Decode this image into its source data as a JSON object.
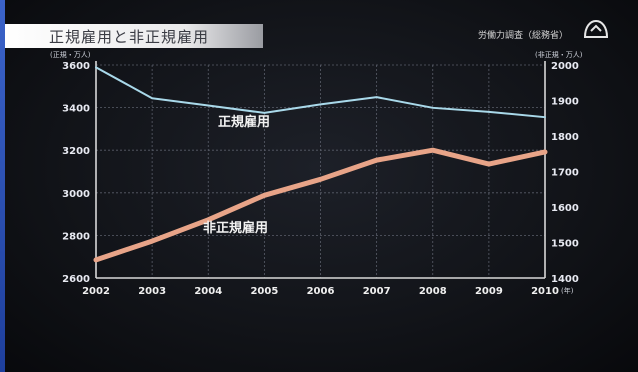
{
  "header": {
    "title": "正規雇用と非正規雇用",
    "source": "労働力調査（総務省）"
  },
  "chart_data": {
    "type": "line",
    "categories": [
      "2002",
      "2003",
      "2004",
      "2005",
      "2006",
      "2007",
      "2008",
      "2009",
      "2010"
    ],
    "x_unit": "(年)",
    "left_axis": {
      "unit": "(正規・万人)",
      "ylim": [
        2800,
        3600
      ],
      "ticks": [
        "3600",
        "3400",
        "3200",
        "3000",
        "2800",
        "2600"
      ],
      "tick_values": [
        3600,
        3400,
        3200,
        3000,
        2800,
        2600
      ]
    },
    "right_axis": {
      "unit": "(非正規・万人)",
      "ylim": [
        1400,
        2000
      ],
      "ticks": [
        "2000",
        "1900",
        "1800",
        "1700",
        "1600",
        "1500",
        "1400"
      ],
      "tick_values": [
        2000,
        1900,
        1800,
        1700,
        1600,
        1500,
        1400
      ]
    },
    "grid": true,
    "series": [
      {
        "name": "正規雇用",
        "axis": "left",
        "color": "#a9d9ea",
        "values": [
          3589,
          3444,
          3410,
          3375,
          3415,
          3449,
          3399,
          3380,
          3355
        ]
      },
      {
        "name": "非正規雇用",
        "axis": "right",
        "color": "#e8a488",
        "values": [
          1451,
          1504,
          1564,
          1633,
          1678,
          1732,
          1760,
          1721,
          1755
        ]
      }
    ]
  }
}
